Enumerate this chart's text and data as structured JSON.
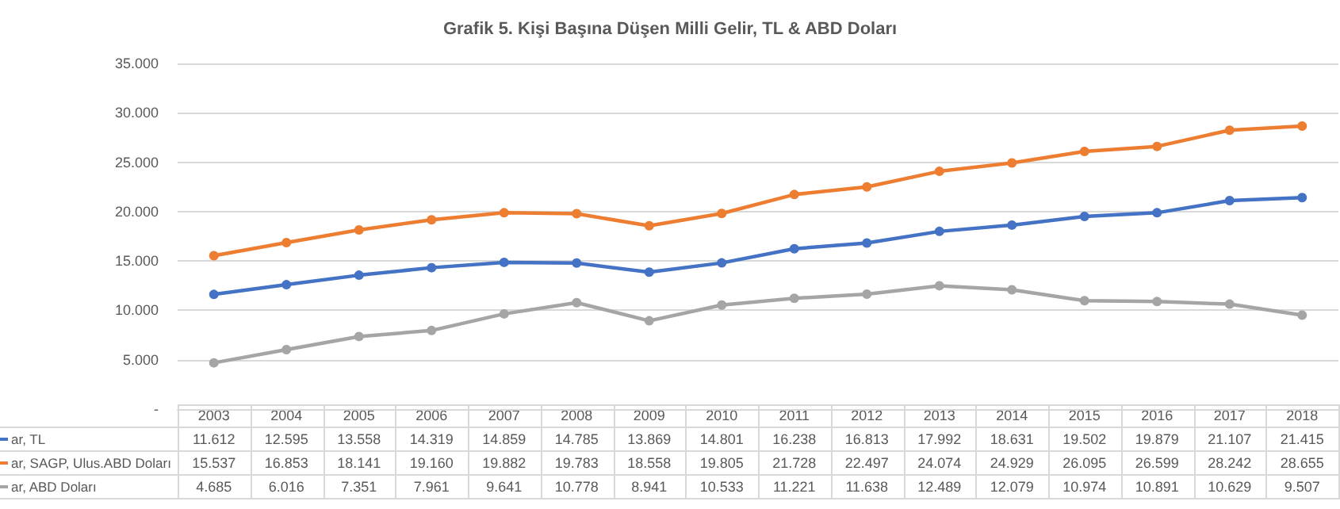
{
  "chart_data": {
    "type": "line",
    "title": "Grafik 5. Kişi Başına Düşen Milli Gelir, TL & ABD Doları",
    "categories": [
      "2003",
      "2004",
      "2005",
      "2006",
      "2007",
      "2008",
      "2009",
      "2010",
      "2011",
      "2012",
      "2013",
      "2014",
      "2015",
      "2016",
      "2017",
      "2018"
    ],
    "series": [
      {
        "name": "ar, TL",
        "color": "#4472c4",
        "values": [
          11612,
          12595,
          13558,
          14319,
          14859,
          14785,
          13869,
          14801,
          16238,
          16813,
          17992,
          18631,
          19502,
          19879,
          21107,
          21415
        ],
        "value_labels": [
          "11.612",
          "12.595",
          "13.558",
          "14.319",
          "14.859",
          "14.785",
          "13.869",
          "14.801",
          "16.238",
          "16.813",
          "17.992",
          "18.631",
          "19.502",
          "19.879",
          "21.107",
          "21.415"
        ]
      },
      {
        "name": "ar, SAGP, Ulus.ABD Doları",
        "color": "#ed7d31",
        "values": [
          15537,
          16853,
          18141,
          19160,
          19882,
          19783,
          18558,
          19805,
          21728,
          22497,
          24074,
          24929,
          26095,
          26599,
          28242,
          28655
        ],
        "value_labels": [
          "15.537",
          "16.853",
          "18.141",
          "19.160",
          "19.882",
          "19.783",
          "18.558",
          "19.805",
          "21.728",
          "22.497",
          "24.074",
          "24.929",
          "26.095",
          "26.599",
          "28.242",
          "28.655"
        ]
      },
      {
        "name": "ar, ABD Doları",
        "color": "#a5a5a5",
        "values": [
          4685,
          6016,
          7351,
          7961,
          9641,
          10778,
          8941,
          10533,
          11221,
          11638,
          12489,
          12079,
          10974,
          10891,
          10629,
          9507
        ],
        "value_labels": [
          "4.685",
          "6.016",
          "7.351",
          "7.961",
          "9.641",
          "10.778",
          "8.941",
          "10.533",
          "11.221",
          "11.638",
          "12.489",
          "12.079",
          "10.974",
          "10.891",
          "10.629",
          "9.507"
        ]
      }
    ],
    "ylim": [
      0,
      35000
    ],
    "yticks": [
      {
        "value": 0,
        "label": "-"
      },
      {
        "value": 5000,
        "label": "5.000"
      },
      {
        "value": 10000,
        "label": "10.000"
      },
      {
        "value": 15000,
        "label": "15.000"
      },
      {
        "value": 20000,
        "label": "20.000"
      },
      {
        "value": 25000,
        "label": "25.000"
      },
      {
        "value": 30000,
        "label": "30.000"
      },
      {
        "value": 35000,
        "label": "35.000"
      }
    ],
    "grid": "y",
    "marker": "circle",
    "line_style": "solid",
    "legend": "bottom left",
    "data_labels": true
  }
}
